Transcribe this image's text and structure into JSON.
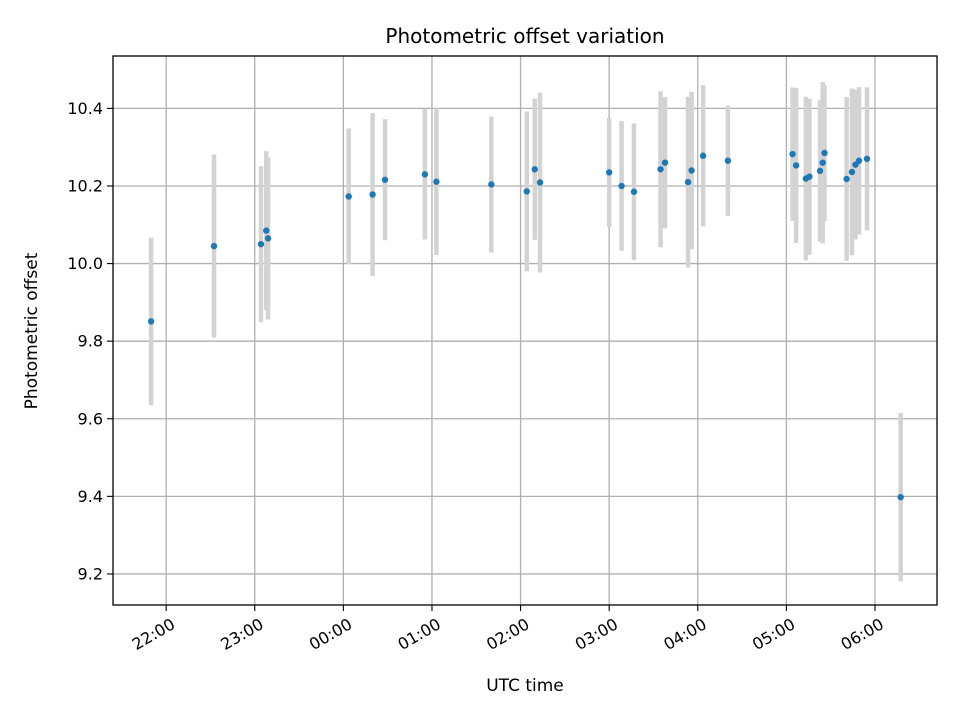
{
  "chart_data": {
    "type": "scatter",
    "title": "Photometric offset variation",
    "xlabel": "UTC time",
    "ylabel": "Photometric offset",
    "x_unit": "UTC hour (continuous; 24+ = next day)",
    "xlim": [
      21.4,
      30.7
    ],
    "ylim": [
      9.12,
      10.535
    ],
    "grid": true,
    "legend": "none",
    "x_ticks": [
      {
        "value": 22,
        "label": "22:00"
      },
      {
        "value": 23,
        "label": "23:00"
      },
      {
        "value": 24,
        "label": "00:00"
      },
      {
        "value": 25,
        "label": "01:00"
      },
      {
        "value": 26,
        "label": "02:00"
      },
      {
        "value": 27,
        "label": "03:00"
      },
      {
        "value": 28,
        "label": "04:00"
      },
      {
        "value": 29,
        "label": "05:00"
      },
      {
        "value": 30,
        "label": "06:00"
      }
    ],
    "y_ticks": [
      {
        "value": 9.2,
        "label": "9.2"
      },
      {
        "value": 9.4,
        "label": "9.4"
      },
      {
        "value": 9.6,
        "label": "9.6"
      },
      {
        "value": 9.8,
        "label": "9.8"
      },
      {
        "value": 10.0,
        "label": "10.0"
      },
      {
        "value": 10.2,
        "label": "10.2"
      },
      {
        "value": 10.4,
        "label": "10.4"
      }
    ],
    "colors": {
      "point": "#1f77b4",
      "error_bar": "#d3d3d3",
      "grid": "#b0b0b0"
    },
    "series": [
      {
        "points": [
          {
            "x": 21.83,
            "y": 9.851,
            "err": 0.216
          },
          {
            "x": 22.54,
            "y": 10.045,
            "err": 0.236
          },
          {
            "x": 23.07,
            "y": 10.05,
            "err": 0.201
          },
          {
            "x": 23.13,
            "y": 10.085,
            "err": 0.205
          },
          {
            "x": 23.15,
            "y": 10.065,
            "err": 0.209
          },
          {
            "x": 24.06,
            "y": 10.173,
            "err": 0.175
          },
          {
            "x": 24.33,
            "y": 10.178,
            "err": 0.21
          },
          {
            "x": 24.47,
            "y": 10.216,
            "err": 0.156
          },
          {
            "x": 24.92,
            "y": 10.23,
            "err": 0.168
          },
          {
            "x": 25.05,
            "y": 10.211,
            "err": 0.189
          },
          {
            "x": 25.67,
            "y": 10.204,
            "err": 0.175
          },
          {
            "x": 26.07,
            "y": 10.186,
            "err": 0.206
          },
          {
            "x": 26.16,
            "y": 10.243,
            "err": 0.182
          },
          {
            "x": 26.22,
            "y": 10.209,
            "err": 0.232
          },
          {
            "x": 27.0,
            "y": 10.235,
            "err": 0.14
          },
          {
            "x": 27.14,
            "y": 10.2,
            "err": 0.167
          },
          {
            "x": 27.28,
            "y": 10.185,
            "err": 0.176
          },
          {
            "x": 27.58,
            "y": 10.243,
            "err": 0.201
          },
          {
            "x": 27.63,
            "y": 10.26,
            "err": 0.169
          },
          {
            "x": 27.89,
            "y": 10.21,
            "err": 0.22
          },
          {
            "x": 27.93,
            "y": 10.24,
            "err": 0.203
          },
          {
            "x": 28.06,
            "y": 10.278,
            "err": 0.182
          },
          {
            "x": 28.34,
            "y": 10.265,
            "err": 0.142
          },
          {
            "x": 29.07,
            "y": 10.282,
            "err": 0.172
          },
          {
            "x": 29.11,
            "y": 10.253,
            "err": 0.2
          },
          {
            "x": 29.22,
            "y": 10.219,
            "err": 0.211
          },
          {
            "x": 29.26,
            "y": 10.224,
            "err": 0.201
          },
          {
            "x": 29.38,
            "y": 10.239,
            "err": 0.182
          },
          {
            "x": 29.41,
            "y": 10.26,
            "err": 0.208
          },
          {
            "x": 29.43,
            "y": 10.285,
            "err": 0.175
          },
          {
            "x": 29.68,
            "y": 10.218,
            "err": 0.211
          },
          {
            "x": 29.74,
            "y": 10.236,
            "err": 0.215
          },
          {
            "x": 29.78,
            "y": 10.255,
            "err": 0.193
          },
          {
            "x": 29.82,
            "y": 10.265,
            "err": 0.19
          },
          {
            "x": 29.91,
            "y": 10.27,
            "err": 0.184
          },
          {
            "x": 30.29,
            "y": 9.398,
            "err": 0.217
          }
        ]
      }
    ]
  }
}
